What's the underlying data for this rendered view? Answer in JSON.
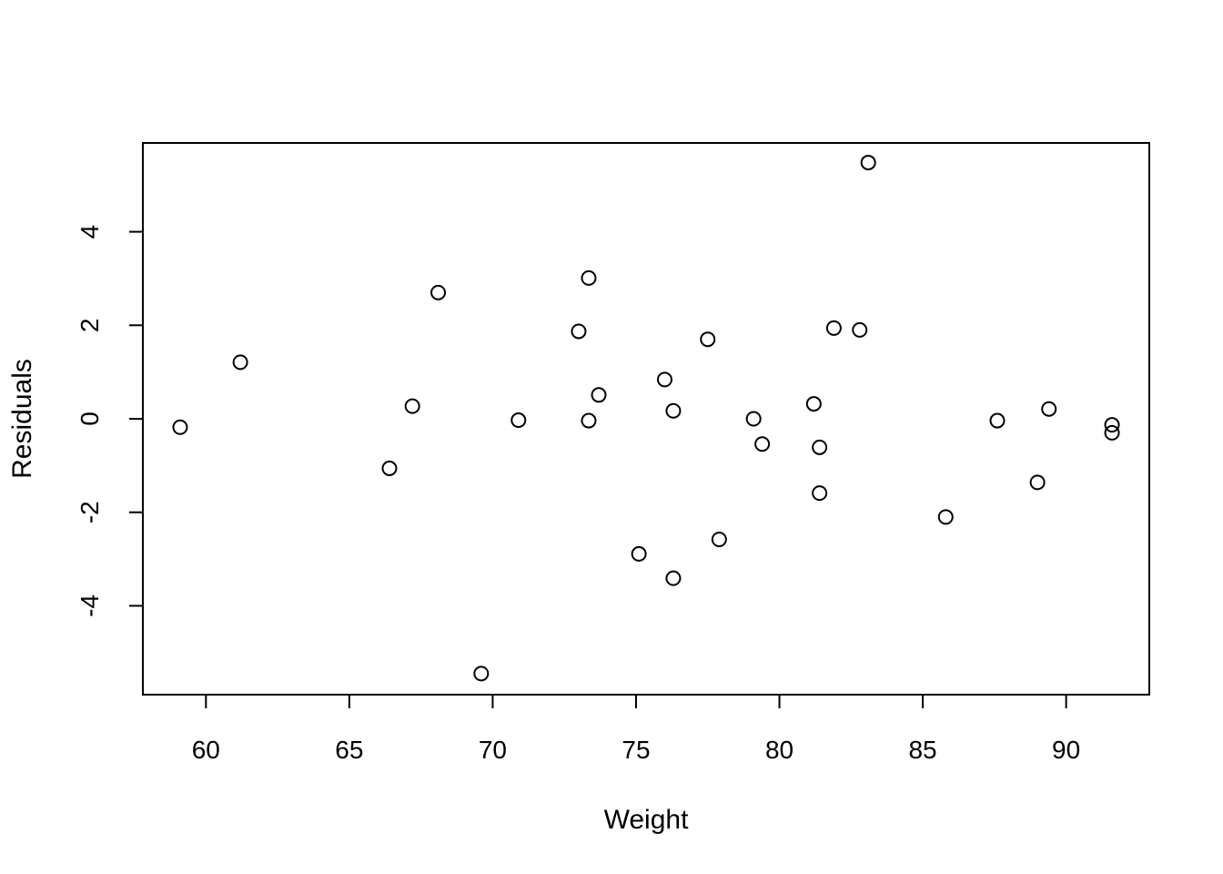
{
  "chart_data": {
    "type": "scatter",
    "title": "",
    "xlabel": "Weight",
    "ylabel": "Residuals",
    "xlim": [
      57.8,
      92.9
    ],
    "ylim": [
      -5.9,
      5.9
    ],
    "x_ticks": [
      60,
      65,
      70,
      75,
      80,
      85,
      90
    ],
    "y_ticks": [
      -4,
      -2,
      0,
      2,
      4
    ],
    "x_tick_labels": [
      "60",
      "65",
      "70",
      "75",
      "80",
      "85",
      "90"
    ],
    "y_tick_labels": [
      "-4",
      "-2",
      "0",
      "2",
      "4"
    ],
    "grid": false,
    "legend": "none",
    "marker": "open-circle",
    "points": [
      {
        "x": 59.1,
        "y": -0.18
      },
      {
        "x": 61.2,
        "y": 1.21
      },
      {
        "x": 66.4,
        "y": -1.06
      },
      {
        "x": 67.2,
        "y": 0.27
      },
      {
        "x": 68.1,
        "y": 2.7
      },
      {
        "x": 69.6,
        "y": -5.45
      },
      {
        "x": 70.9,
        "y": -0.03
      },
      {
        "x": 73.0,
        "y": 1.87
      },
      {
        "x": 73.35,
        "y": 3.01
      },
      {
        "x": 73.35,
        "y": -0.04
      },
      {
        "x": 73.7,
        "y": 0.51
      },
      {
        "x": 75.1,
        "y": -2.89
      },
      {
        "x": 76.0,
        "y": 0.84
      },
      {
        "x": 76.3,
        "y": 0.17
      },
      {
        "x": 76.3,
        "y": -3.41
      },
      {
        "x": 77.5,
        "y": 1.7
      },
      {
        "x": 77.9,
        "y": -2.58
      },
      {
        "x": 79.1,
        "y": 0.0
      },
      {
        "x": 79.4,
        "y": -0.54
      },
      {
        "x": 81.2,
        "y": 0.32
      },
      {
        "x": 81.4,
        "y": -0.61
      },
      {
        "x": 81.4,
        "y": -1.59
      },
      {
        "x": 81.9,
        "y": 1.94
      },
      {
        "x": 82.8,
        "y": 1.9
      },
      {
        "x": 83.1,
        "y": 5.48
      },
      {
        "x": 85.8,
        "y": -2.1
      },
      {
        "x": 87.6,
        "y": -0.04
      },
      {
        "x": 89.0,
        "y": -1.36
      },
      {
        "x": 89.4,
        "y": 0.21
      },
      {
        "x": 91.6,
        "y": -0.13
      },
      {
        "x": 91.6,
        "y": -0.3
      }
    ]
  }
}
